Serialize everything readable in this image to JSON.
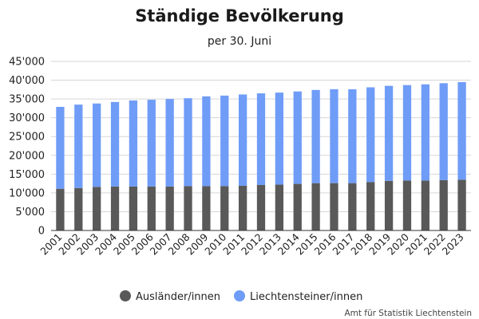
{
  "chart_data": {
    "type": "bar",
    "stacked": true,
    "title": "Ständige Bevölkerung",
    "subtitle": "per 30. Juni",
    "xlabel": "",
    "ylabel": "",
    "ylim": [
      0,
      45000
    ],
    "yticks": [
      0,
      5000,
      10000,
      15000,
      20000,
      25000,
      30000,
      35000,
      40000,
      45000
    ],
    "ytick_labels": [
      "0",
      "5'000",
      "10'000",
      "15'000",
      "20'000",
      "25'000",
      "30'000",
      "35'000",
      "40'000",
      "45'000"
    ],
    "grid": true,
    "legend_position": "bottom",
    "categories": [
      "2001",
      "2002",
      "2003",
      "2004",
      "2005",
      "2006",
      "2007",
      "2008",
      "2009",
      "2010",
      "2011",
      "2012",
      "2013",
      "2014",
      "2015",
      "2016",
      "2017",
      "2018",
      "2019",
      "2020",
      "2021",
      "2022",
      "2023"
    ],
    "series": [
      {
        "name": "Ausländer/innen",
        "color": "#595959",
        "values": [
          11100,
          11300,
          11600,
          11700,
          11700,
          11700,
          11700,
          11800,
          11800,
          11800,
          11900,
          12100,
          12200,
          12400,
          12600,
          12600,
          12600,
          12900,
          13200,
          13300,
          13300,
          13400,
          13500
        ]
      },
      {
        "name": "Liechtensteiner/innen",
        "color": "#6f9cf7",
        "values": [
          21800,
          22200,
          22200,
          22500,
          22900,
          23100,
          23300,
          23400,
          23900,
          24100,
          24300,
          24400,
          24500,
          24600,
          24800,
          25000,
          25000,
          25200,
          25300,
          25400,
          25600,
          25800,
          26000
        ]
      }
    ]
  },
  "source_note": "Amt für Statistik Liechtenstein"
}
